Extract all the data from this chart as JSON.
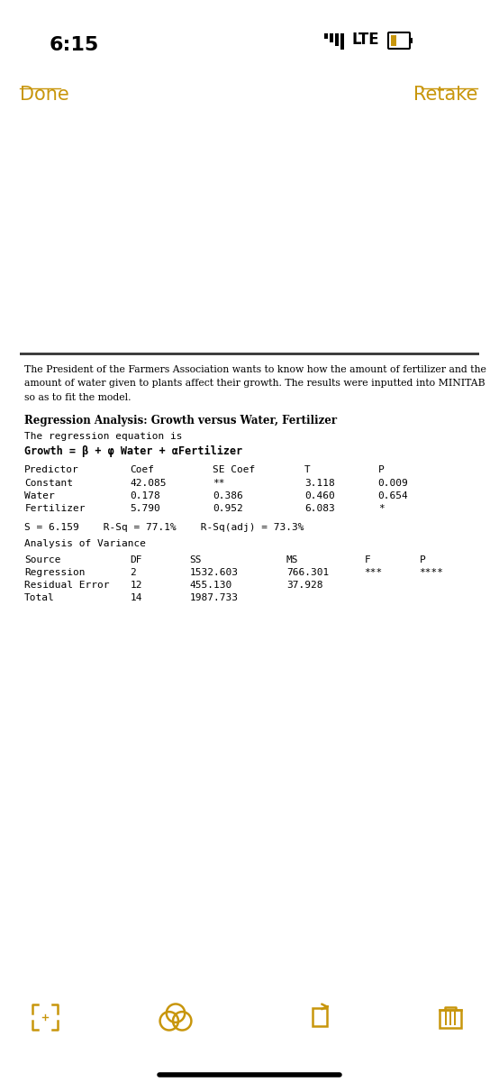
{
  "bg_white": "#ffffff",
  "bg_gray": "#c8c8c8",
  "bg_paper": "#f0ede6",
  "status_time": "6:15",
  "status_lte": "LTE",
  "done_text": "Done",
  "retake_text": "Retake",
  "link_color": "#c8960c",
  "intro_text": "The President of the Farmers Association wants to know how the amount of fertilizer and the\namount of water given to plants affect their growth. The results were inputted into MINITAB\nso as to fit the model.",
  "section_title": "Regression Analysis: Growth versus Water, Fertilizer",
  "reg_eq_line1": "The regression equation is",
  "reg_eq_line2": "Growth = β + φ Water + αFertilizer",
  "table_header": [
    "Predictor",
    "Coef",
    "SE Coef",
    "T",
    "P"
  ],
  "table_rows": [
    [
      "Constant",
      "42.085",
      "**",
      "3.118",
      "0.009"
    ],
    [
      "Water",
      "0.178",
      "0.386",
      "0.460",
      "0.654"
    ],
    [
      "Fertilizer",
      "5.790",
      "0.952",
      "6.083",
      "*"
    ]
  ],
  "stats_line": "S = 6.159    R-Sq = 77.1%%    R-Sq(adj) = 73.3%",
  "anova_title": "Analysis of Variance",
  "anova_header": [
    "Source",
    "DF",
    "SS",
    "MS",
    "F",
    "P"
  ],
  "anova_rows": [
    [
      "Regression",
      "2",
      "1532.603",
      "766.301",
      "***",
      "****"
    ],
    [
      "Residual Error",
      "12",
      "455.130",
      "37.928",
      "",
      ""
    ],
    [
      "Total",
      "14",
      "1987.733",
      "",
      "",
      ""
    ]
  ],
  "icon_color": "#c8960c",
  "fig_width": 5.54,
  "fig_height": 12.0,
  "dpi": 100
}
